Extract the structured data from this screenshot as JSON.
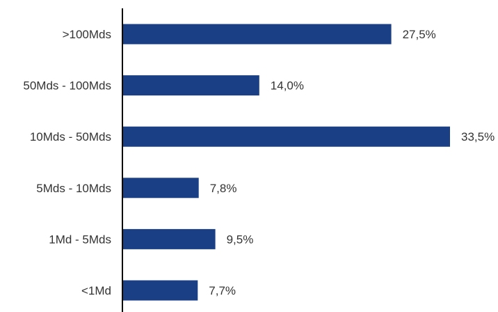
{
  "chart_data": {
    "type": "bar",
    "orientation": "horizontal",
    "categories": [
      ">100Mds",
      "50Mds - 100Mds",
      "10Mds - 50Mds",
      "5Mds - 10Mds",
      "1Md - 5Mds",
      "<1Md"
    ],
    "values": [
      27.5,
      14.0,
      33.5,
      7.8,
      9.5,
      7.7
    ],
    "value_labels": [
      "27,5%",
      "14,0%",
      "33,5%",
      "7,8%",
      "9,5%",
      "7,7%"
    ],
    "unit": "%",
    "xlim": [
      0,
      33.5
    ],
    "bar_color": "#1b3f85",
    "axis_color": "#000000",
    "grid": false,
    "legend": "none"
  }
}
